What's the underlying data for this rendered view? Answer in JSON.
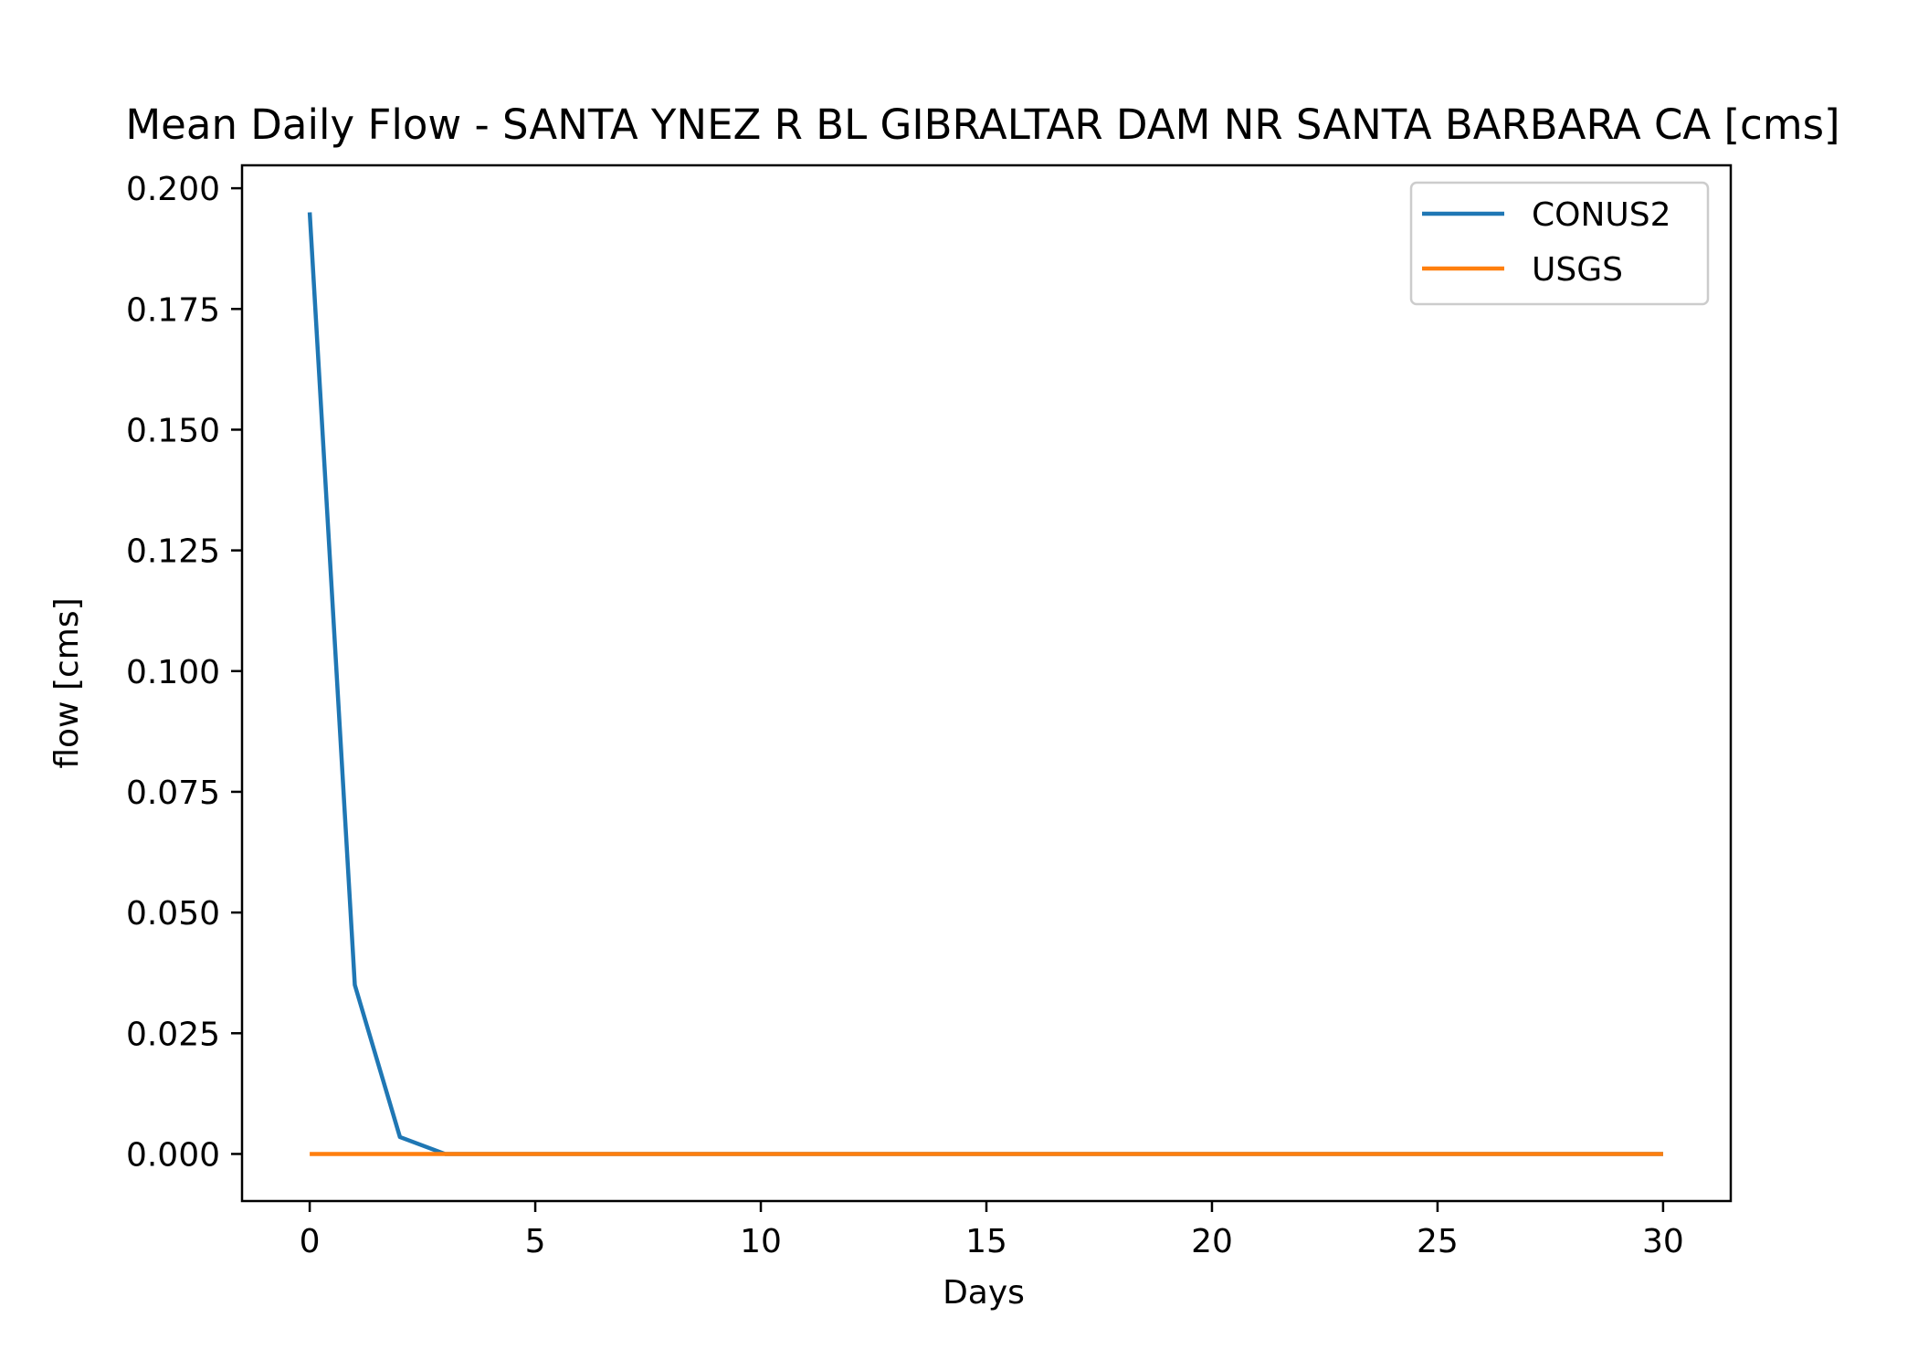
{
  "chart_data": {
    "type": "line",
    "title": "Mean Daily Flow - SANTA YNEZ R BL GIBRALTAR DAM NR SANTA BARBARA CA [cms]",
    "xlabel": "Days",
    "ylabel": "flow [cms]",
    "xlim": [
      -1.5,
      31.5
    ],
    "ylim": [
      -0.00975,
      0.20475
    ],
    "xticks": [
      0,
      5,
      10,
      15,
      20,
      25,
      30
    ],
    "xtick_labels": [
      "0",
      "5",
      "10",
      "15",
      "20",
      "25",
      "30"
    ],
    "yticks": [
      0,
      0.025,
      0.05,
      0.075,
      0.1,
      0.125,
      0.15,
      0.175,
      0.2
    ],
    "ytick_labels": [
      "0.000",
      "0.025",
      "0.050",
      "0.075",
      "0.100",
      "0.125",
      "0.150",
      "0.175",
      "0.200"
    ],
    "grid": false,
    "legend_position": "top-right",
    "x": [
      0,
      1,
      2,
      3,
      4,
      5,
      6,
      7,
      8,
      9,
      10,
      11,
      12,
      13,
      14,
      15,
      16,
      17,
      18,
      19,
      20,
      21,
      22,
      23,
      24,
      25,
      26,
      27,
      28,
      29,
      30
    ],
    "series": [
      {
        "name": "CONUS2",
        "color": "#1f77b4",
        "values": [
          0.195,
          0.035,
          0.0035,
          0,
          0,
          0,
          0,
          0,
          0,
          0,
          0,
          0,
          0,
          0,
          0,
          0,
          0,
          0,
          0,
          0,
          0,
          0,
          0,
          0,
          0,
          0,
          0,
          0,
          0,
          0,
          0
        ]
      },
      {
        "name": "USGS",
        "color": "#ff7f0e",
        "values": [
          0,
          0,
          0,
          0,
          0,
          0,
          0,
          0,
          0,
          0,
          0,
          0,
          0,
          0,
          0,
          0,
          0,
          0,
          0,
          0,
          0,
          0,
          0,
          0,
          0,
          0,
          0,
          0,
          0,
          0,
          0
        ]
      }
    ]
  }
}
